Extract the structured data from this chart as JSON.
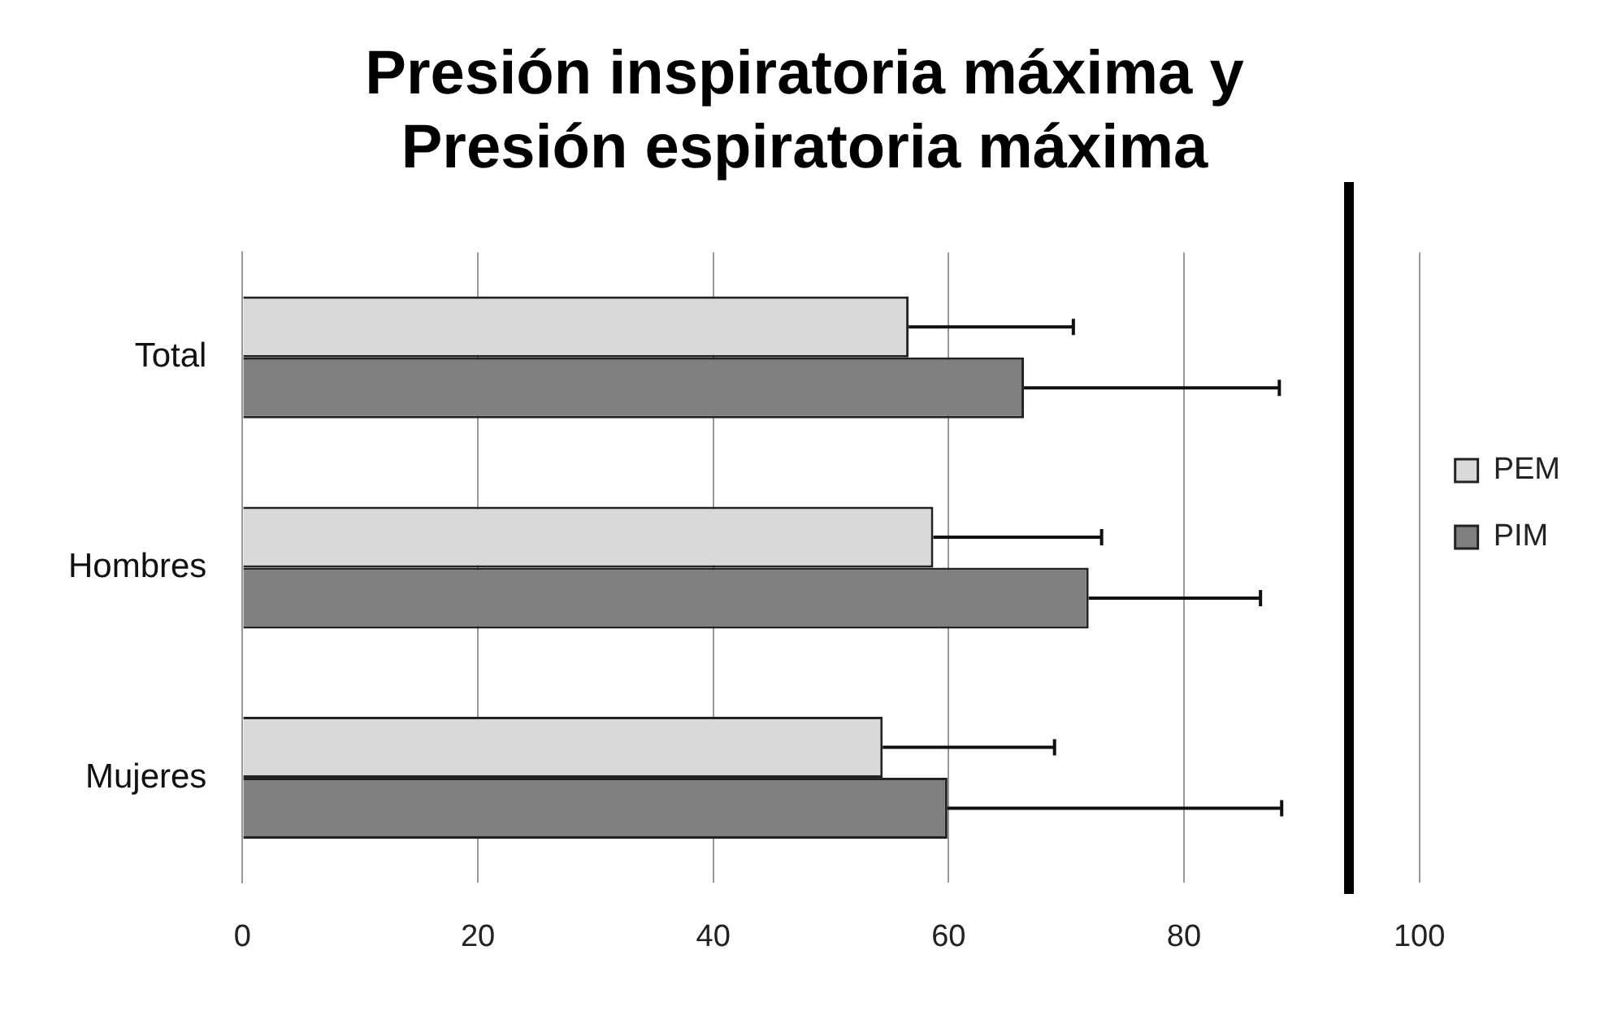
{
  "chart_data": {
    "type": "bar",
    "orientation": "horizontal",
    "title": [
      "Presión inspiratoria máxima y",
      "Presión espiratoria máxima"
    ],
    "categories": [
      "Total",
      "Hombres",
      "Mujeres"
    ],
    "series": [
      {
        "name": "PEM",
        "color": "#d9d9d9",
        "values": [
          56.6,
          58.7,
          54.4
        ],
        "errors": [
          [
            56.6,
            70.6
          ],
          [
            58.7,
            73.0
          ],
          [
            54.4,
            69.0
          ]
        ]
      },
      {
        "name": "PIM",
        "color": "#808080",
        "values": [
          66.4,
          71.9,
          59.9
        ],
        "errors": [
          [
            66.4,
            88.1
          ],
          [
            71.9,
            86.5
          ],
          [
            59.9,
            88.3
          ]
        ]
      }
    ],
    "xlim": [
      0,
      100
    ],
    "xticks": [
      0,
      20,
      40,
      60,
      80,
      100
    ],
    "grid": "x",
    "legend": "right"
  }
}
